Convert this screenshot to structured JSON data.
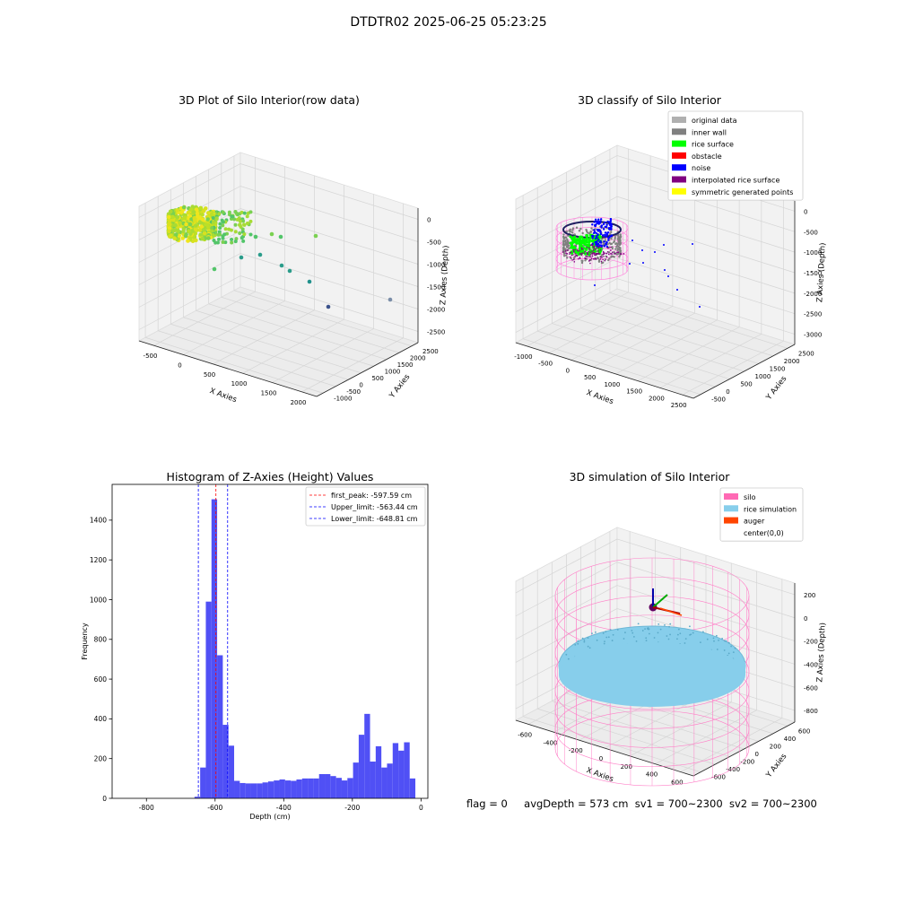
{
  "suptitle": "DTDTR02 2025-06-25 05:23:25",
  "status": {
    "flag": "flag = 0",
    "avg_depth": "avgDepth = 573 cm",
    "sv1": "sv1 = 700~2300",
    "sv2": "sv2 = 700~2300"
  },
  "colors": {
    "histogram_bar": "#5050f5",
    "first_peak_line": "#ff0000",
    "limit_line": "#0000ff",
    "original_data": "#b0b0b0",
    "inner_wall": "#808080",
    "rice_surface": "#00ff00",
    "obstacle": "#ff0000",
    "noise": "#0000ff",
    "interpolated_rice_surface": "#800080",
    "symmetric_generated_points": "#ffff00",
    "silo": "#ff69b4",
    "rice_simulation": "#87ceeb",
    "auger": "#ff4500",
    "wall_wireframe": "#ff99dd"
  },
  "chart_data": [
    {
      "type": "scatter",
      "title": "3D Plot of Silo Interior(row data)",
      "xlabel": "X Axies",
      "ylabel": "Y Axies",
      "zlabel": "Z Axies (Depth)",
      "x_ticks": [
        "-500",
        "0",
        "500",
        "1000",
        "1500",
        "2000"
      ],
      "y_ticks": [
        "-1000",
        "-500",
        "0",
        "500",
        "1000",
        "1500",
        "2000",
        "2500"
      ],
      "z_ticks": [
        "0",
        "-500",
        "-1000",
        "-1500",
        "-2000",
        "-2500"
      ],
      "xlim": [
        -650,
        2200
      ],
      "ylim": [
        -1000,
        2700
      ],
      "zlim": [
        -2900,
        200
      ],
      "colormap": "viridis"
    },
    {
      "type": "scatter",
      "title": "3D classify of Silo Interior",
      "xlabel": "X Axies",
      "ylabel": "Y Axies",
      "zlabel": "Z Axies (Depth)",
      "x_ticks": [
        "-1000",
        "-500",
        "0",
        "500",
        "1000",
        "1500",
        "2000",
        "2500"
      ],
      "y_ticks": [
        "-500",
        "0",
        "500",
        "1000",
        "1500",
        "2000",
        "2500"
      ],
      "z_ticks": [
        "0",
        "-500",
        "-1000",
        "-1500",
        "-2000",
        "-2500",
        "-3000"
      ],
      "xlim": [
        -1100,
        2600
      ],
      "ylim": [
        -700,
        2700
      ],
      "zlim": [
        -3100,
        200
      ],
      "legend_position": "top-right",
      "legend": [
        "original data",
        "inner wall",
        "rice surface",
        "obstacle",
        "noise",
        "interpolated rice surface",
        "symmetric generated points"
      ]
    },
    {
      "type": "bar",
      "title": "Histogram of Z-Axies (Height) Values",
      "xlabel": "Depth (cm)",
      "ylabel": "Frequency",
      "xlim": [
        -900,
        20
      ],
      "ylim": [
        0,
        1580
      ],
      "x_ticks": [
        -800,
        -600,
        -400,
        -200,
        0
      ],
      "y_ticks": [
        0,
        200,
        400,
        600,
        800,
        1000,
        1200,
        1400
      ],
      "bin_width": 16.5,
      "bins": [
        {
          "x0": -660,
          "count": 8
        },
        {
          "x0": -643.5,
          "count": 155
        },
        {
          "x0": -627,
          "count": 990
        },
        {
          "x0": -610.5,
          "count": 1505
        },
        {
          "x0": -594,
          "count": 720
        },
        {
          "x0": -577.5,
          "count": 370
        },
        {
          "x0": -561,
          "count": 265
        },
        {
          "x0": -544.5,
          "count": 88
        },
        {
          "x0": -528,
          "count": 77
        },
        {
          "x0": -511.5,
          "count": 75
        },
        {
          "x0": -495,
          "count": 75
        },
        {
          "x0": -478.5,
          "count": 75
        },
        {
          "x0": -462,
          "count": 80
        },
        {
          "x0": -445.5,
          "count": 85
        },
        {
          "x0": -429,
          "count": 90
        },
        {
          "x0": -412.5,
          "count": 95
        },
        {
          "x0": -396,
          "count": 90
        },
        {
          "x0": -379.5,
          "count": 88
        },
        {
          "x0": -363,
          "count": 95
        },
        {
          "x0": -346.5,
          "count": 100
        },
        {
          "x0": -330,
          "count": 100
        },
        {
          "x0": -313.5,
          "count": 100
        },
        {
          "x0": -297,
          "count": 122
        },
        {
          "x0": -280.5,
          "count": 122
        },
        {
          "x0": -264,
          "count": 112
        },
        {
          "x0": -247.5,
          "count": 103
        },
        {
          "x0": -231,
          "count": 90
        },
        {
          "x0": -214.5,
          "count": 102
        },
        {
          "x0": -198,
          "count": 180
        },
        {
          "x0": -181.5,
          "count": 320
        },
        {
          "x0": -165,
          "count": 425
        },
        {
          "x0": -148.5,
          "count": 185
        },
        {
          "x0": -132,
          "count": 262
        },
        {
          "x0": -115.5,
          "count": 155
        },
        {
          "x0": -99,
          "count": 175
        },
        {
          "x0": -82.5,
          "count": 278
        },
        {
          "x0": -66,
          "count": 240
        },
        {
          "x0": -49.5,
          "count": 282
        },
        {
          "x0": -33,
          "count": 100
        }
      ],
      "lines": [
        {
          "label": "first_peak: -597.59 cm",
          "x": -597.59,
          "color": "#ff0000"
        },
        {
          "label": "Upper_limit: -563.44 cm",
          "x": -563.44,
          "color": "#0000ff"
        },
        {
          "label": "Lower_limit: -648.81 cm",
          "x": -648.81,
          "color": "#0000ff"
        }
      ],
      "legend_position": "top-right"
    },
    {
      "type": "scatter",
      "title": "3D simulation of Silo Interior",
      "xlabel": "X Axies",
      "ylabel": "Y Axies",
      "zlabel": "Z Axies (Depth)",
      "x_ticks": [
        "-600",
        "-400",
        "-200",
        "0",
        "200",
        "400",
        "600"
      ],
      "y_ticks": [
        "-600",
        "-400",
        "-200",
        "0",
        "200",
        "400",
        "600"
      ],
      "z_ticks": [
        "200",
        "0",
        "-200",
        "-400",
        "-600",
        "-800"
      ],
      "xlim": [
        -700,
        700
      ],
      "ylim": [
        -700,
        700
      ],
      "zlim": [
        -1000,
        350
      ],
      "legend_position": "top-right",
      "legend": [
        "silo",
        "rice simulation",
        "auger",
        "center(0,0)"
      ]
    }
  ]
}
